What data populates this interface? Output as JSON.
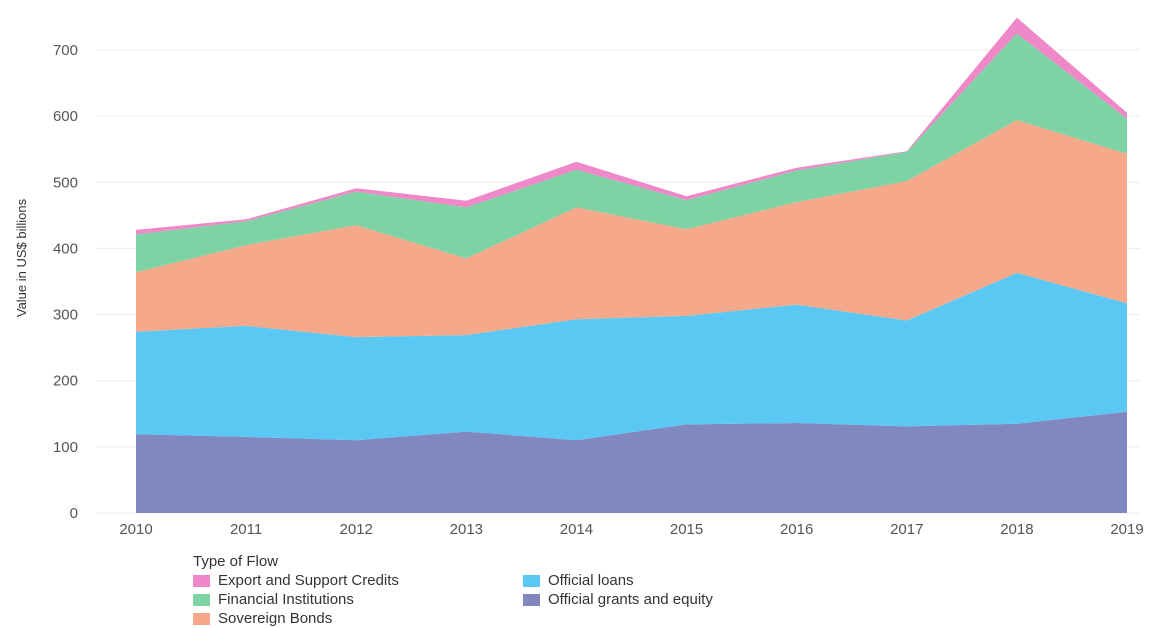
{
  "chart_data": {
    "type": "area",
    "stacked": true,
    "x": [
      2010,
      2011,
      2012,
      2013,
      2014,
      2015,
      2016,
      2017,
      2018,
      2019
    ],
    "ylabel": "Value in US$ billions",
    "ylim": [
      0,
      750
    ],
    "yticks": [
      0,
      100,
      200,
      300,
      400,
      500,
      600,
      700
    ],
    "grid": true,
    "legend_title": "Type of Flow",
    "legend_position": "bottom-left",
    "series": [
      {
        "name": "Official grants and equity",
        "color": "#8088bf",
        "values": [
          119,
          115,
          110,
          123,
          110,
          134,
          136,
          131,
          135,
          153
        ]
      },
      {
        "name": "Official loans",
        "color": "#5ac8f3",
        "values": [
          155,
          168,
          156,
          146,
          183,
          164,
          179,
          160,
          228,
          164
        ]
      },
      {
        "name": "Sovereign Bonds",
        "color": "#f5a98a",
        "values": [
          90,
          122,
          169,
          116,
          169,
          131,
          155,
          211,
          231,
          226
        ]
      },
      {
        "name": "Financial Institutions",
        "color": "#7ed3a4",
        "values": [
          57,
          36,
          51,
          77,
          57,
          44,
          48,
          44,
          131,
          53
        ]
      },
      {
        "name": "Export and Support Credits",
        "color": "#ee88c8",
        "values": [
          7,
          3,
          5,
          10,
          12,
          6,
          4,
          1,
          24,
          9
        ]
      }
    ]
  },
  "legend": {
    "title": "Type of Flow",
    "items": [
      {
        "label": "Export and Support Credits",
        "color": "#ee88c8"
      },
      {
        "label": "Official loans",
        "color": "#5ac8f3"
      },
      {
        "label": "Financial Institutions",
        "color": "#7ed3a4"
      },
      {
        "label": "Official grants and equity",
        "color": "#8088bf"
      },
      {
        "label": "Sovereign Bonds",
        "color": "#f5a98a"
      }
    ]
  }
}
